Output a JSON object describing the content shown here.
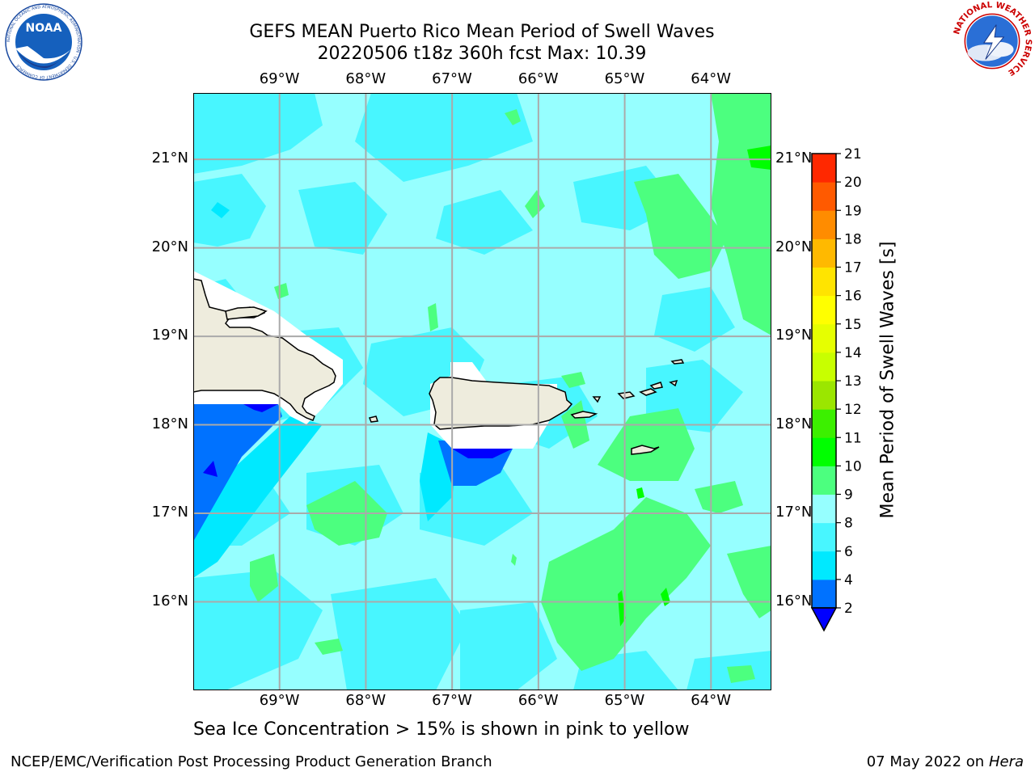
{
  "header": {
    "title_line1": "GEFS MEAN Puerto Rico Mean Period of Swell Waves",
    "title_line2": "20220506 t18z 360h fcst   Max: 10.39"
  },
  "logos": {
    "left": "NOAA",
    "left_ring": "NATIONAL OCEANIC AND ATMOSPHERIC ADMINISTRATION · U.S. DEPARTMENT OF COMMERCE",
    "right_ring": "NATIONAL WEATHER SERVICE"
  },
  "map": {
    "lon_ticks": [
      "69°W",
      "68°W",
      "67°W",
      "66°W",
      "65°W",
      "64°W"
    ],
    "lat_ticks": [
      "21°N",
      "20°N",
      "19°N",
      "18°N",
      "17°N",
      "16°N"
    ],
    "lon_range": [
      -70.0,
      -63.3
    ],
    "lat_range": [
      15.0,
      21.75
    ],
    "grid": true
  },
  "colorbar": {
    "label": "Mean Period of Swell Waves [s]",
    "levels": [
      2,
      4,
      6,
      8,
      9,
      10,
      11,
      12,
      13,
      14,
      15,
      16,
      17,
      18,
      19,
      20,
      21
    ],
    "colors": [
      "#0072ff",
      "#00e9ff",
      "#48f6ff",
      "#96ffff",
      "#4cff7f",
      "#00ff00",
      "#3cf000",
      "#9be600",
      "#c8ff00",
      "#e6ff00",
      "#ffff00",
      "#ffe400",
      "#ffb900",
      "#ff8c00",
      "#ff5a00",
      "#ff2800"
    ],
    "under_color": "#0000ff"
  },
  "colors": {
    "background_field": "#96ffff",
    "land": "#eeecdd",
    "grid": "#aaaaaa"
  },
  "caption": "Sea Ice Concentration > 15% is shown in pink to yellow",
  "footer": {
    "left": "NCEP/EMC/Verification Post Processing Product Generation Branch",
    "right_prefix": "07 May 2022 on",
    "right_host": "Hera"
  }
}
